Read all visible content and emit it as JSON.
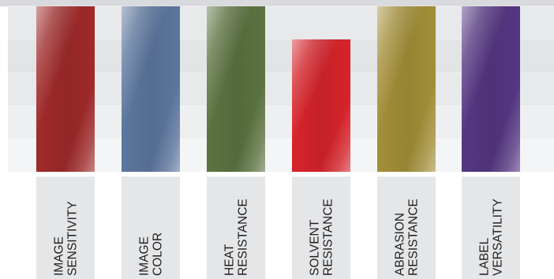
{
  "chart_data": {
    "type": "bar",
    "categories": [
      [
        "IMAGE",
        "SENSITIVITY"
      ],
      [
        "IMAGE",
        "COLOR"
      ],
      [
        "HEAT",
        "RESISTANCE"
      ],
      [
        "SOLVENT",
        "RESISTANCE"
      ],
      [
        "ABRASION",
        "RESISTANCE"
      ],
      [
        "LABEL",
        "VERSATILITY"
      ]
    ],
    "values": [
      5,
      5,
      5,
      4,
      5,
      5
    ],
    "ylim": [
      0,
      5
    ],
    "grid": true,
    "bar_colors": [
      "#a02a2a",
      "#5c769e",
      "#5c7340",
      "#d6242b",
      "#a38f38",
      "#553782"
    ],
    "band_colors": [
      "#f4f5f6",
      "#eeeff1",
      "#e8e9eb",
      "#e3e4e6",
      "#e8e9eb"
    ],
    "label_box_color": "#e5e6e8",
    "text_color": "#1e1e1e"
  }
}
